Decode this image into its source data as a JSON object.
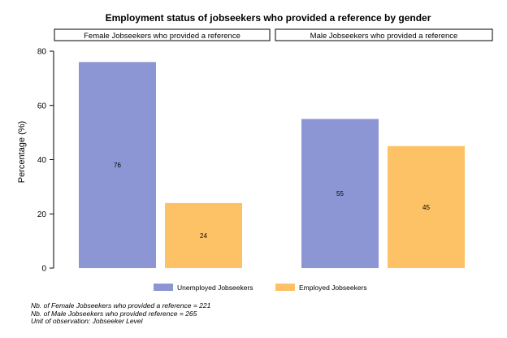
{
  "chart_data": {
    "type": "bar",
    "title": "Employment status of jobseekers who provided a reference by gender",
    "ylabel": "Percentage (%)",
    "ylim": [
      0,
      80
    ],
    "yticks": [
      0,
      20,
      40,
      60,
      80
    ],
    "panels": [
      {
        "title": "Female Jobseekers who provided a reference",
        "values": [
          76,
          24
        ]
      },
      {
        "title": "Male Jobseekers who provided a reference",
        "values": [
          55,
          45
        ]
      }
    ],
    "series": [
      {
        "name": "Unemployed Jobseekers",
        "color": "#8c96d4"
      },
      {
        "name": "Employed Jobseekers",
        "color": "#fdc266"
      }
    ],
    "legend_position": "bottom",
    "grid": false,
    "notes": [
      "Nb. of Female Jobseekers who provided a reference = 221",
      "Nb. of Male Jobseekers who provided reference = 265",
      "Unit of observation: Jobseeker Level"
    ]
  }
}
